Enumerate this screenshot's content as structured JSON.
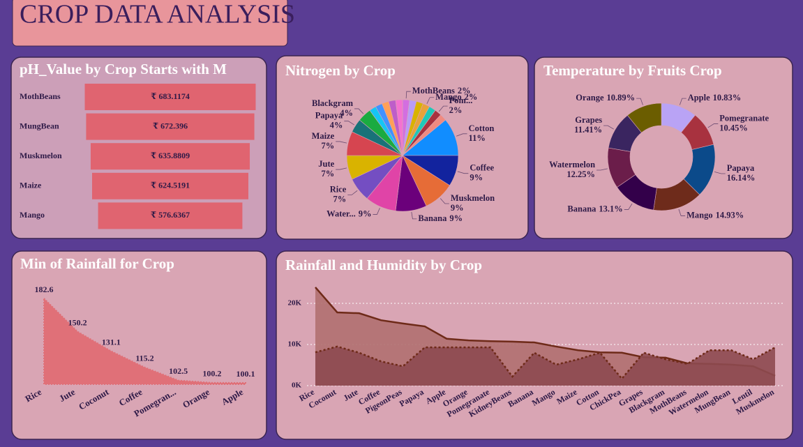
{
  "header": {
    "title": "CROP DATA ANALYSIS"
  },
  "chart_data": [
    {
      "type": "funnel",
      "title": "pH_Value by Crop Starts with M",
      "categories": [
        "MothBeans",
        "MungBean",
        "Muskmelon",
        "Maize",
        "Mango"
      ],
      "values": [
        683.1174,
        672.396,
        635.8809,
        624.5191,
        576.6367
      ],
      "value_labels": [
        "₹ 683.1174",
        "₹ 672.396",
        "₹ 635.8809",
        "₹ 624.5191",
        "₹ 576.6367"
      ],
      "color": "#e06470"
    },
    {
      "type": "pie",
      "title": "Nitrogen by Crop",
      "categories": [
        "MothBeans",
        null,
        null,
        "Mango",
        null,
        "Pom...",
        null,
        "Cotton",
        "Coffee",
        "Muskmelon",
        "Banana",
        "Water...",
        "Rice",
        "Jute",
        "Maize",
        "Papaya",
        "Blackgram",
        null,
        null,
        null,
        null,
        null
      ],
      "values": [
        2,
        2,
        2,
        2,
        2,
        2,
        2,
        11,
        9,
        9,
        9,
        9,
        7,
        7,
        7,
        4,
        4,
        2,
        2,
        2,
        2,
        2
      ],
      "value_labels": [
        "2%",
        null,
        null,
        "2%",
        null,
        "2%",
        null,
        "11%",
        "9%",
        "9%",
        "9%",
        "9%",
        "7%",
        "7%",
        "7%",
        "4%",
        "4%",
        null,
        null,
        null,
        null,
        null
      ],
      "colors": [
        "#d36ee0",
        "#b99cf5",
        "#d9b300",
        "#e8a23a",
        "#1fc8b8",
        "#a8323f",
        "#f08a80",
        "#118dff",
        "#12239e",
        "#e66c37",
        "#6b007b",
        "#e044a7",
        "#744ec2",
        "#d9b300",
        "#d64550",
        "#197278",
        "#1aab40",
        "#15c6f4",
        "#4092ff",
        "#ffa058",
        "#be5dc9",
        "#f472d0"
      ]
    },
    {
      "type": "donut",
      "title": "Temperature by Fruits Crop",
      "categories": [
        "Apple",
        "Pomegranate",
        "Papaya",
        "Mango",
        "Banana",
        "Watermelon",
        "Grapes",
        "Orange"
      ],
      "values": [
        10.83,
        10.45,
        16.14,
        14.93,
        13.1,
        12.25,
        11.41,
        10.89
      ],
      "value_labels": [
        "10.83%",
        "10.45%",
        "16.14%",
        "14.93%",
        "13.1%",
        "12.25%",
        "11.41%",
        "10.89%"
      ],
      "colors": [
        "#b9a3f5",
        "#a8323f",
        "#0b4a8a",
        "#6e2b1b",
        "#33004a",
        "#6b1d4a",
        "#3a2560",
        "#6b5d00"
      ]
    },
    {
      "type": "area",
      "title": "Min of Rainfall for Crop",
      "categories": [
        "Rice",
        "Jute",
        "Coconut",
        "Coffee",
        "Pomegran...",
        "Orange",
        "Apple"
      ],
      "values": [
        182.6,
        150.2,
        131.1,
        115.2,
        102.5,
        100.2,
        100.1
      ],
      "color": "#e07078"
    },
    {
      "type": "area",
      "title": "Rainfall and Humidity by Crop",
      "categories": [
        "Rice",
        "Coconut",
        "Jute",
        "Coffee",
        "PigeonPeas",
        "Papaya",
        "Apple",
        "Orange",
        "Pomegranate",
        "KidneyBeans",
        "Banana",
        "Mango",
        "Maize",
        "Cotton",
        "ChickPea",
        "Grapes",
        "Blackgram",
        "MothBeans",
        "Watermelon",
        "MungBean",
        "Lentil",
        "Muskmelon"
      ],
      "series": [
        {
          "color": "#b07070",
          "values": [
            23900,
            17800,
            17600,
            15900,
            15100,
            14400,
            11400,
            11000,
            10800,
            10700,
            10500,
            9500,
            8600,
            8100,
            8000,
            6900,
            6800,
            5400,
            5300,
            5100,
            4700,
            2400
          ]
        },
        {
          "color": "#8d4a50",
          "values": [
            8100,
            9500,
            8000,
            5900,
            4700,
            9300,
            9300,
            9300,
            9300,
            2200,
            8000,
            5100,
            6400,
            8000,
            1700,
            8000,
            6400,
            5300,
            8600,
            8600,
            6400,
            9300
          ]
        }
      ],
      "ylim": [
        0,
        25000
      ],
      "yticks": [
        {
          "value": 0,
          "label": "0K"
        },
        {
          "value": 10000,
          "label": "10K"
        },
        {
          "value": 20000,
          "label": "20K"
        }
      ],
      "grid": true
    }
  ]
}
